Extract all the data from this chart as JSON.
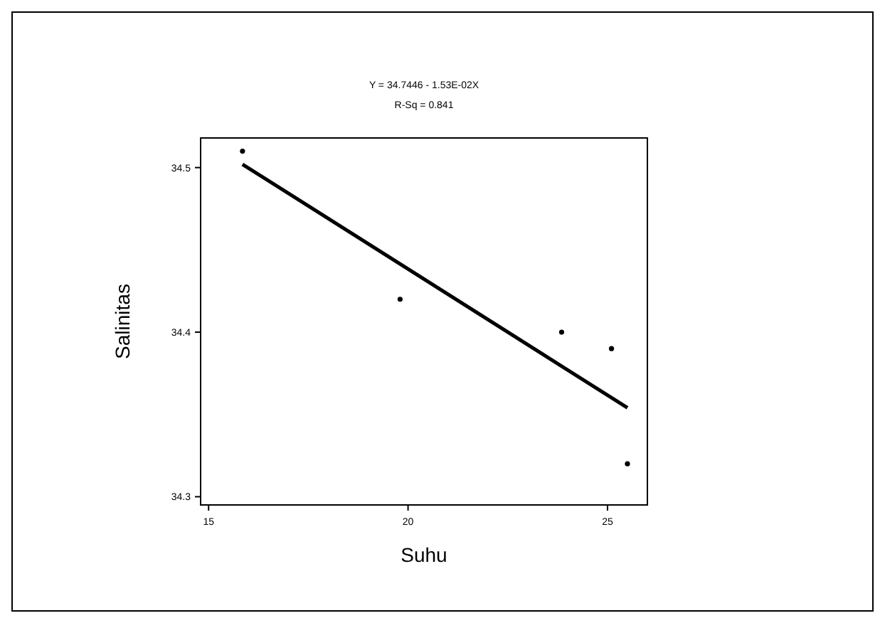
{
  "chart_data": {
    "type": "scatter",
    "title": "Y = 34.7446 - 1.53E-02X",
    "subtitle": "R-Sq = 0.841",
    "xlabel": "Suhu",
    "ylabel": "Salinitas",
    "xlim": [
      14.8,
      26
    ],
    "ylim": [
      34.295,
      34.518
    ],
    "xticks": [
      15,
      20,
      25
    ],
    "yticks": [
      {
        "value": 34.3,
        "label": "34.3"
      },
      {
        "value": 34.4,
        "label": "34.4"
      },
      {
        "value": 34.5,
        "label": "34.5"
      }
    ],
    "grid": false,
    "series": [
      {
        "marker": "circle",
        "color": "#000000",
        "x": [
          15.85,
          19.8,
          23.85,
          25.1,
          25.5
        ],
        "values": [
          34.51,
          34.42,
          34.4,
          34.39,
          34.32
        ]
      },
      {
        "type": "line",
        "color": "#000000",
        "x": [
          15.85,
          25.5
        ],
        "values": [
          34.502,
          34.354
        ]
      }
    ]
  }
}
